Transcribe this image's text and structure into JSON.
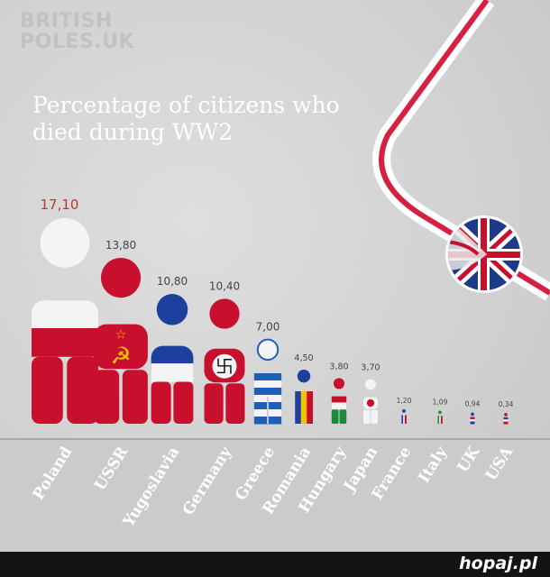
{
  "watermark": "BRITISH POLES.UK",
  "footer": {
    "site": "hopaj.pl"
  },
  "colors": {
    "red": "#c8102e",
    "white": "#f4f4f4",
    "blue": "#1d3f9e",
    "greek_blue": "#1f5fb8",
    "yellow": "#f2c400",
    "green": "#1d8a3a",
    "black": "#111111",
    "label_red": "#c23434",
    "label_gray": "#444444"
  },
  "chart_data": {
    "type": "bar",
    "title": "Percentage of citizens who died during WW2",
    "categories": [
      "Poland",
      "USSR",
      "Yugoslavia",
      "Germany",
      "Greece",
      "Romania",
      "Hungary",
      "Japan",
      "France",
      "Italy",
      "UK",
      "USA"
    ],
    "values": [
      17.1,
      13.8,
      10.8,
      10.4,
      7.0,
      4.5,
      3.8,
      3.7,
      1.2,
      1.09,
      0.94,
      0.34
    ],
    "value_labels": [
      "17,10",
      "13,80",
      "10,80",
      "10,40",
      "7,00",
      "4,50",
      "3,80",
      "3,70",
      "1,20",
      "1,09",
      "0,94",
      "0,34"
    ],
    "style": [
      "poland",
      "ussr",
      "yugoslavia",
      "germany",
      "greece",
      "romania",
      "hungary",
      "japan",
      "france",
      "italy",
      "uk",
      "usa"
    ],
    "ylim": [
      0,
      17.1
    ],
    "grid": false,
    "legend": "none"
  }
}
